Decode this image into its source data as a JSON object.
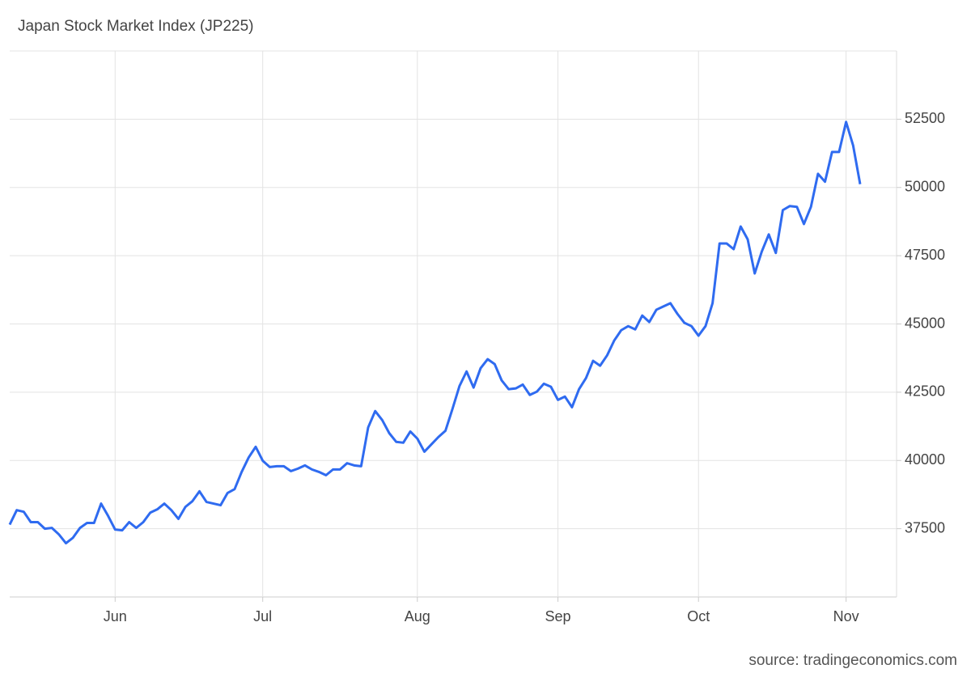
{
  "chart_data": {
    "type": "line",
    "title": "Japan Stock Market Index (JP225)",
    "source": "source: tradingeconomics.com",
    "categories": [
      null,
      null,
      null,
      null,
      null,
      null,
      null,
      null,
      null,
      null,
      null,
      null,
      null,
      null,
      null,
      "Jun",
      null,
      null,
      null,
      null,
      null,
      null,
      null,
      null,
      null,
      null,
      null,
      null,
      null,
      null,
      null,
      null,
      null,
      null,
      null,
      null,
      "Jul",
      null,
      null,
      null,
      null,
      null,
      null,
      null,
      null,
      null,
      null,
      null,
      null,
      null,
      null,
      null,
      null,
      null,
      null,
      null,
      null,
      null,
      "Aug",
      null,
      null,
      null,
      null,
      null,
      null,
      null,
      null,
      null,
      null,
      null,
      null,
      null,
      null,
      null,
      null,
      null,
      null,
      null,
      "Sep",
      null,
      null,
      null,
      null,
      null,
      null,
      null,
      null,
      null,
      null,
      null,
      null,
      null,
      null,
      null,
      null,
      null,
      null,
      null,
      "Oct",
      null,
      null,
      null,
      null,
      null,
      null,
      null,
      null,
      null,
      null,
      null,
      null,
      null,
      null,
      null,
      null,
      null,
      null,
      null,
      null,
      "Nov",
      null,
      null
    ],
    "values": [
      37650,
      38180,
      38120,
      37740,
      37740,
      37500,
      37530,
      37290,
      36970,
      37170,
      37530,
      37710,
      37710,
      38420,
      37970,
      37470,
      37440,
      37740,
      37530,
      37740,
      38090,
      38210,
      38420,
      38180,
      37860,
      38300,
      38510,
      38870,
      38480,
      38420,
      38360,
      38810,
      38950,
      39580,
      40110,
      40500,
      39990,
      39760,
      39790,
      39790,
      39610,
      39700,
      39820,
      39670,
      39580,
      39460,
      39670,
      39670,
      39900,
      39820,
      39790,
      41210,
      41810,
      41480,
      41000,
      40680,
      40650,
      41060,
      40800,
      40320,
      40590,
      40860,
      41090,
      41890,
      42730,
      43260,
      42670,
      43380,
      43710,
      43530,
      42930,
      42610,
      42640,
      42780,
      42400,
      42520,
      42810,
      42700,
      42220,
      42340,
      41950,
      42610,
      43020,
      43650,
      43470,
      43850,
      44390,
      44770,
      44920,
      44800,
      45310,
      45070,
      45520,
      45640,
      45760,
      45370,
      45040,
      44920,
      44570,
      44920,
      45760,
      47950,
      47950,
      47740,
      48570,
      48100,
      46850,
      47650,
      48280,
      47600,
      49170,
      49320,
      49290,
      48660,
      49290,
      50500,
      50210,
      51300,
      51300,
      52400,
      51540,
      50120
    ],
    "color": "#2f6bf0",
    "ylim": [
      35000,
      55000
    ],
    "yticks": [
      37500,
      40000,
      42500,
      45000,
      47500,
      50000,
      52500
    ],
    "grid": true
  }
}
